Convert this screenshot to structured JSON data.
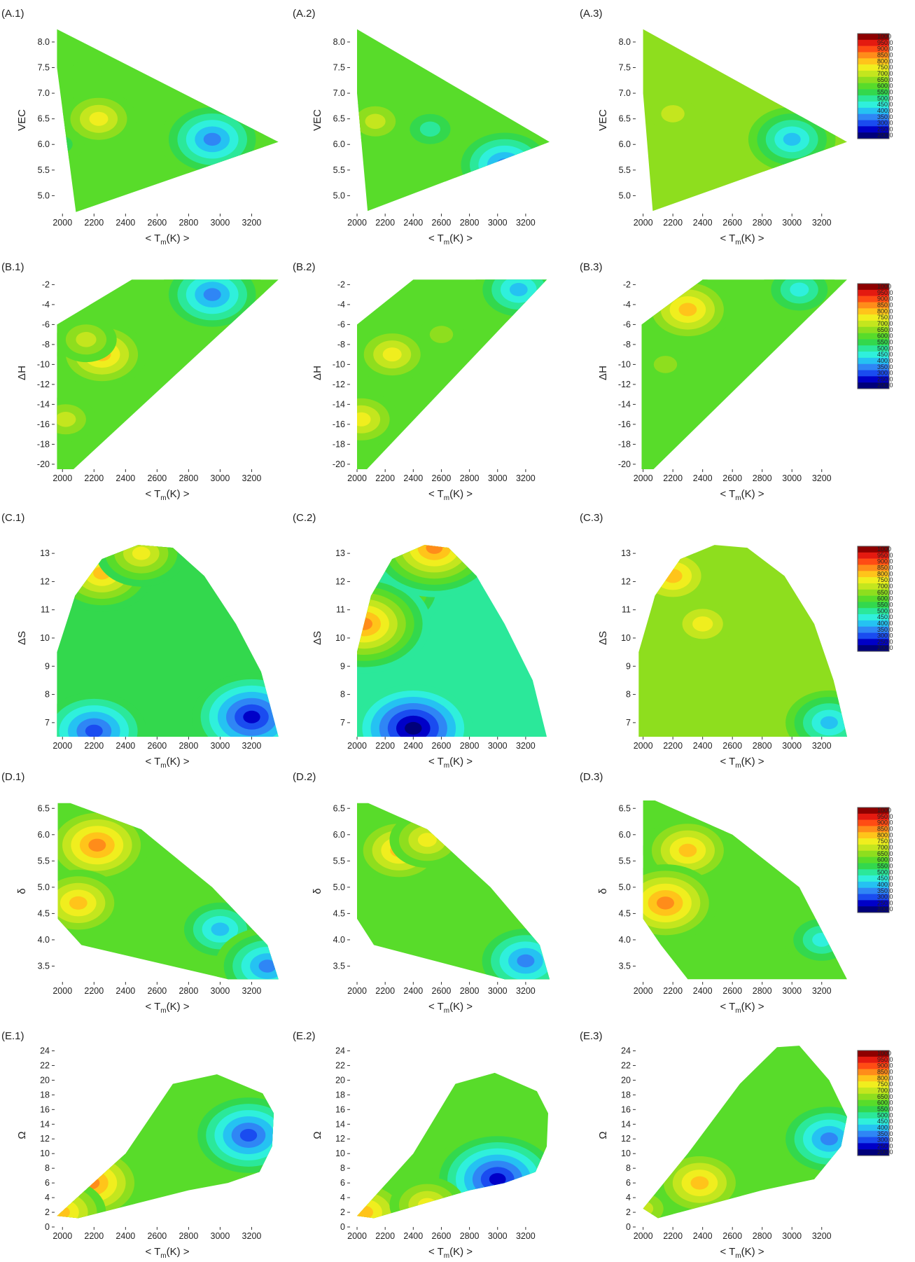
{
  "figure": {
    "colors": [
      "#00007a",
      "#0000c8",
      "#1a4cf0",
      "#2f86f5",
      "#25c2f2",
      "#2ff0dc",
      "#2be89a",
      "#33d84d",
      "#58dc2a",
      "#8ede1e",
      "#c4e61e",
      "#f0ee1e",
      "#ffc41a",
      "#ff8c1a",
      "#ff4c14",
      "#e41a10",
      "#8e0000"
    ],
    "colorbar_levels": [
      "1000",
      "950.0",
      "900.0",
      "850.0",
      "800.0",
      "750.0",
      "700.0",
      "650.0",
      "600.0",
      "550.0",
      "500.0",
      "450.0",
      "400.0",
      "350.0",
      "300.0",
      "250.0",
      "200.0"
    ],
    "xlabel": "< T",
    "xlabel_sub": "m",
    "xlabel_tail": "(K) >"
  },
  "chart_data": [
    {
      "type": "heatmap",
      "panel": "(A.1)",
      "ylabel": "VEC",
      "xticks": [
        "2000",
        "2200",
        "2400",
        "2600",
        "2800",
        "3000",
        "3200"
      ],
      "xlim": [
        1950,
        3380
      ],
      "yticks": [
        "5.0",
        "5.5",
        "6.0",
        "6.5",
        "7.0",
        "7.5",
        "8.0"
      ],
      "ylim": [
        4.65,
        8.3
      ],
      "outline": [
        [
          1965,
          8.25
        ],
        [
          3370,
          6.05
        ],
        [
          2085,
          4.68
        ],
        [
          1965,
          7.5
        ]
      ],
      "hotspots": [
        [
          2230,
          6.5,
          11
        ],
        [
          2150,
          7.4,
          8
        ],
        [
          1990,
          6.0,
          7
        ],
        [
          2950,
          6.1,
          3
        ]
      ],
      "base": 8,
      "colorbar": false
    },
    {
      "type": "heatmap",
      "panel": "(A.2)",
      "ylabel": "VEC",
      "xticks": [
        "2000",
        "2200",
        "2400",
        "2600",
        "2800",
        "3000",
        "3200"
      ],
      "xlim": [
        1950,
        3380
      ],
      "yticks": [
        "5.0",
        "5.5",
        "6.0",
        "6.5",
        "7.0",
        "7.5",
        "8.0"
      ],
      "ylim": [
        4.65,
        8.3
      ],
      "outline": [
        [
          2000,
          8.25
        ],
        [
          3370,
          6.05
        ],
        [
          2075,
          4.7
        ],
        [
          2000,
          7.0
        ]
      ],
      "hotspots": [
        [
          2130,
          6.45,
          10
        ],
        [
          2520,
          6.3,
          6
        ],
        [
          3050,
          5.6,
          3
        ]
      ],
      "base": 8,
      "colorbar": false
    },
    {
      "type": "heatmap",
      "panel": "(A.3)",
      "ylabel": "VEC",
      "xticks": [
        "2000",
        "2200",
        "2400",
        "2600",
        "2800",
        "3000",
        "3200"
      ],
      "xlim": [
        1950,
        3380
      ],
      "yticks": [
        "5.0",
        "5.5",
        "6.0",
        "6.5",
        "7.0",
        "7.5",
        "8.0"
      ],
      "ylim": [
        4.65,
        8.3
      ],
      "outline": [
        [
          2000,
          8.25
        ],
        [
          3370,
          6.05
        ],
        [
          2065,
          4.7
        ],
        [
          2000,
          7.0
        ]
      ],
      "hotspots": [
        [
          2200,
          6.6,
          10
        ],
        [
          2500,
          6.3,
          9
        ],
        [
          3000,
          6.1,
          4
        ]
      ],
      "base": 9,
      "colorbar": true
    },
    {
      "type": "heatmap",
      "panel": "(B.1)",
      "ylabel": "ΔH",
      "xticks": [
        "2000",
        "2200",
        "2400",
        "2600",
        "2800",
        "3000",
        "3200"
      ],
      "xlim": [
        1950,
        3380
      ],
      "yticks": [
        "-20",
        "-18",
        "-16",
        "-14",
        "-12",
        "-10",
        "-8",
        "-6",
        "-4",
        "-2"
      ],
      "ylim": [
        -20.5,
        -1.2
      ],
      "outline": [
        [
          1965,
          -6.0
        ],
        [
          2440,
          -1.5
        ],
        [
          3370,
          -1.5
        ],
        [
          2070,
          -20.5
        ],
        [
          1965,
          -20.5
        ]
      ],
      "hotspots": [
        [
          2250,
          -9.0,
          12
        ],
        [
          2020,
          -15.5,
          10
        ],
        [
          2150,
          -7.5,
          10
        ],
        [
          2950,
          -3.0,
          3
        ]
      ],
      "base": 8,
      "colorbar": false
    },
    {
      "type": "heatmap",
      "panel": "(B.2)",
      "ylabel": "ΔH",
      "xticks": [
        "2000",
        "2200",
        "2400",
        "2600",
        "2800",
        "3000",
        "3200"
      ],
      "xlim": [
        1950,
        3380
      ],
      "yticks": [
        "-20",
        "-18",
        "-16",
        "-14",
        "-12",
        "-10",
        "-8",
        "-6",
        "-4",
        "-2"
      ],
      "ylim": [
        -20.5,
        -1.2
      ],
      "outline": [
        [
          2000,
          -6.0
        ],
        [
          2400,
          -1.5
        ],
        [
          3350,
          -1.5
        ],
        [
          2070,
          -20.5
        ],
        [
          2000,
          -20.5
        ]
      ],
      "hotspots": [
        [
          2250,
          -9.0,
          11
        ],
        [
          2030,
          -15.5,
          11
        ],
        [
          2600,
          -7.0,
          9
        ],
        [
          3150,
          -2.5,
          4
        ]
      ],
      "base": 8,
      "colorbar": false
    },
    {
      "type": "heatmap",
      "panel": "(B.3)",
      "ylabel": "ΔH",
      "xticks": [
        "2000",
        "2200",
        "2400",
        "2600",
        "2800",
        "3000",
        "3200"
      ],
      "xlim": [
        1950,
        3380
      ],
      "yticks": [
        "-20",
        "-18",
        "-16",
        "-14",
        "-12",
        "-10",
        "-8",
        "-6",
        "-4",
        "-2"
      ],
      "ylim": [
        -20.5,
        -1.2
      ],
      "outline": [
        [
          1990,
          -6.0
        ],
        [
          2400,
          -1.5
        ],
        [
          3370,
          -1.5
        ],
        [
          2070,
          -20.5
        ],
        [
          1990,
          -20.5
        ]
      ],
      "hotspots": [
        [
          2300,
          -4.5,
          12
        ],
        [
          2150,
          -10,
          9
        ],
        [
          3050,
          -2.5,
          5
        ]
      ],
      "base": 8,
      "colorbar": true
    },
    {
      "type": "heatmap",
      "panel": "(C.1)",
      "ylabel": "ΔS",
      "xticks": [
        "2000",
        "2200",
        "2400",
        "2600",
        "2800",
        "3000",
        "3200"
      ],
      "xlim": [
        1950,
        3380
      ],
      "yticks": [
        "7",
        "8",
        "9",
        "10",
        "11",
        "12",
        "13"
      ],
      "ylim": [
        6.5,
        13.5
      ],
      "outline": [
        [
          1965,
          6.5
        ],
        [
          1965,
          9.5
        ],
        [
          2080,
          11.5
        ],
        [
          2250,
          12.8
        ],
        [
          2480,
          13.3
        ],
        [
          2700,
          13.2
        ],
        [
          2900,
          12.2
        ],
        [
          3100,
          10.5
        ],
        [
          3260,
          8.8
        ],
        [
          3370,
          6.5
        ]
      ],
      "hotspots": [
        [
          2250,
          12.3,
          12
        ],
        [
          2500,
          13.0,
          11
        ],
        [
          3200,
          7.2,
          1
        ],
        [
          2200,
          6.7,
          2
        ]
      ],
      "base": 7,
      "colorbar": false
    },
    {
      "type": "heatmap",
      "panel": "(C.2)",
      "ylabel": "ΔS",
      "xticks": [
        "2000",
        "2200",
        "2400",
        "2600",
        "2800",
        "3000",
        "3200"
      ],
      "xlim": [
        1950,
        3380
      ],
      "yticks": [
        "7",
        "8",
        "9",
        "10",
        "11",
        "12",
        "13"
      ],
      "ylim": [
        6.5,
        13.5
      ],
      "outline": [
        [
          2000,
          6.5
        ],
        [
          2000,
          9.5
        ],
        [
          2100,
          11.5
        ],
        [
          2250,
          12.8
        ],
        [
          2480,
          13.3
        ],
        [
          2650,
          13.2
        ],
        [
          2850,
          12.2
        ],
        [
          3050,
          10.5
        ],
        [
          3250,
          8.5
        ],
        [
          3350,
          6.5
        ]
      ],
      "hotspots": [
        [
          2150,
          11.8,
          13
        ],
        [
          2050,
          10.5,
          13
        ],
        [
          2400,
          6.8,
          0
        ],
        [
          2550,
          13.2,
          13
        ]
      ],
      "base": 6,
      "colorbar": false
    },
    {
      "type": "heatmap",
      "panel": "(C.3)",
      "ylabel": "ΔS",
      "xticks": [
        "2000",
        "2200",
        "2400",
        "2600",
        "2800",
        "3000",
        "3200"
      ],
      "xlim": [
        1950,
        3380
      ],
      "yticks": [
        "7",
        "8",
        "9",
        "10",
        "11",
        "12",
        "13"
      ],
      "ylim": [
        6.5,
        13.5
      ],
      "outline": [
        [
          1970,
          6.5
        ],
        [
          1970,
          9.5
        ],
        [
          2080,
          11.5
        ],
        [
          2250,
          12.8
        ],
        [
          2480,
          13.3
        ],
        [
          2700,
          13.2
        ],
        [
          2950,
          12.2
        ],
        [
          3150,
          10.5
        ],
        [
          3280,
          8.5
        ],
        [
          3370,
          6.5
        ]
      ],
      "hotspots": [
        [
          2200,
          12.2,
          12
        ],
        [
          2400,
          10.5,
          11
        ],
        [
          3250,
          7.0,
          4
        ]
      ],
      "base": 9,
      "colorbar": true
    },
    {
      "type": "heatmap",
      "panel": "(D.1)",
      "ylabel": "δ",
      "xticks": [
        "2000",
        "2200",
        "2400",
        "2600",
        "2800",
        "3000",
        "3200"
      ],
      "xlim": [
        1950,
        3380
      ],
      "yticks": [
        "3.5",
        "4.0",
        "4.5",
        "5.0",
        "5.5",
        "6.0",
        "6.5"
      ],
      "ylim": [
        3.2,
        6.65
      ],
      "outline": [
        [
          1970,
          6.6
        ],
        [
          2050,
          6.6
        ],
        [
          2500,
          6.1
        ],
        [
          2950,
          5.0
        ],
        [
          3300,
          3.9
        ],
        [
          3370,
          3.25
        ],
        [
          3050,
          3.25
        ],
        [
          2120,
          3.9
        ],
        [
          1970,
          4.4
        ]
      ],
      "hotspots": [
        [
          2220,
          5.8,
          13
        ],
        [
          2100,
          4.7,
          12
        ],
        [
          3000,
          4.2,
          4
        ],
        [
          3300,
          3.5,
          3
        ]
      ],
      "base": 8,
      "colorbar": false
    },
    {
      "type": "heatmap",
      "panel": "(D.2)",
      "ylabel": "δ",
      "xticks": [
        "2000",
        "2200",
        "2400",
        "2600",
        "2800",
        "3000",
        "3200"
      ],
      "xlim": [
        1950,
        3380
      ],
      "yticks": [
        "3.5",
        "4.0",
        "4.5",
        "5.0",
        "5.5",
        "6.0",
        "6.5"
      ],
      "ylim": [
        3.2,
        6.65
      ],
      "outline": [
        [
          2000,
          6.6
        ],
        [
          2080,
          6.6
        ],
        [
          2500,
          6.1
        ],
        [
          2950,
          5.0
        ],
        [
          3300,
          3.9
        ],
        [
          3370,
          3.25
        ],
        [
          3050,
          3.25
        ],
        [
          2120,
          3.9
        ],
        [
          2000,
          4.4
        ]
      ],
      "hotspots": [
        [
          2300,
          5.7,
          12
        ],
        [
          2500,
          5.9,
          11
        ],
        [
          3200,
          3.6,
          3
        ]
      ],
      "base": 8,
      "colorbar": false
    },
    {
      "type": "heatmap",
      "panel": "(D.3)",
      "ylabel": "δ",
      "xticks": [
        "2000",
        "2200",
        "2400",
        "2600",
        "2800",
        "3000",
        "3200"
      ],
      "xlim": [
        1950,
        3380
      ],
      "yticks": [
        "3.5",
        "4.0",
        "4.5",
        "5.0",
        "5.5",
        "6.0",
        "6.5"
      ],
      "ylim": [
        3.2,
        6.65
      ],
      "outline": [
        [
          2000,
          6.65
        ],
        [
          2080,
          6.65
        ],
        [
          2600,
          6.0
        ],
        [
          3050,
          5.0
        ],
        [
          3370,
          3.25
        ],
        [
          2300,
          3.25
        ],
        [
          2120,
          3.9
        ],
        [
          2000,
          4.4
        ]
      ],
      "hotspots": [
        [
          2300,
          5.7,
          12
        ],
        [
          2150,
          4.7,
          13
        ],
        [
          3200,
          4.0,
          5
        ]
      ],
      "base": 8,
      "colorbar": true
    },
    {
      "type": "heatmap",
      "panel": "(E.1)",
      "ylabel": "Ω",
      "xticks": [
        "2000",
        "2200",
        "2400",
        "2600",
        "2800",
        "3000",
        "3200"
      ],
      "xlim": [
        1950,
        3380
      ],
      "yticks": [
        "0",
        "2",
        "4",
        "6",
        "8",
        "10",
        "12",
        "14",
        "16",
        "18",
        "20",
        "22",
        "24"
      ],
      "ylim": [
        0,
        25
      ],
      "outline": [
        [
          1965,
          1.5
        ],
        [
          2400,
          10
        ],
        [
          2700,
          19.5
        ],
        [
          2980,
          20.8
        ],
        [
          3270,
          18.2
        ],
        [
          3340,
          15.5
        ],
        [
          3330,
          11
        ],
        [
          3250,
          7.5
        ],
        [
          3050,
          6
        ],
        [
          2800,
          5
        ],
        [
          2100,
          1.2
        ]
      ],
      "hotspots": [
        [
          2180,
          6,
          13
        ],
        [
          1990,
          2,
          12
        ],
        [
          3180,
          12.5,
          2
        ]
      ],
      "base": 8,
      "colorbar": false
    },
    {
      "type": "heatmap",
      "panel": "(E.2)",
      "ylabel": "Ω",
      "xticks": [
        "2000",
        "2200",
        "2400",
        "2600",
        "2800",
        "3000",
        "3200"
      ],
      "xlim": [
        1950,
        3380
      ],
      "yticks": [
        "0",
        "2",
        "4",
        "6",
        "8",
        "10",
        "12",
        "14",
        "16",
        "18",
        "20",
        "22",
        "24"
      ],
      "ylim": [
        0,
        25
      ],
      "outline": [
        [
          2000,
          1.5
        ],
        [
          2400,
          10
        ],
        [
          2700,
          19.5
        ],
        [
          2980,
          21
        ],
        [
          3280,
          18.5
        ],
        [
          3360,
          15.5
        ],
        [
          3350,
          11
        ],
        [
          3270,
          7.5
        ],
        [
          3050,
          6
        ],
        [
          2800,
          5
        ],
        [
          2120,
          1.2
        ]
      ],
      "hotspots": [
        [
          2050,
          2,
          12
        ],
        [
          3000,
          6.5,
          1
        ],
        [
          2500,
          3,
          11
        ]
      ],
      "base": 8,
      "colorbar": false
    },
    {
      "type": "heatmap",
      "panel": "(E.3)",
      "ylabel": "Ω",
      "xticks": [
        "2000",
        "2200",
        "2400",
        "2600",
        "2800",
        "3000",
        "3200"
      ],
      "xlim": [
        1950,
        3380
      ],
      "yticks": [
        "0",
        "2",
        "4",
        "6",
        "8",
        "10",
        "12",
        "14",
        "16",
        "18",
        "20",
        "22",
        "24"
      ],
      "ylim": [
        0,
        25
      ],
      "outline": [
        [
          2000,
          2.5
        ],
        [
          2300,
          10
        ],
        [
          2650,
          19.5
        ],
        [
          2900,
          24.5
        ],
        [
          3050,
          24.7
        ],
        [
          3250,
          20
        ],
        [
          3370,
          15
        ],
        [
          3330,
          11
        ],
        [
          3150,
          6.5
        ],
        [
          2800,
          5
        ],
        [
          2100,
          1.2
        ]
      ],
      "hotspots": [
        [
          2380,
          6,
          12
        ],
        [
          2000,
          2.5,
          10
        ],
        [
          3250,
          12,
          3
        ]
      ],
      "base": 8,
      "colorbar": true
    }
  ]
}
